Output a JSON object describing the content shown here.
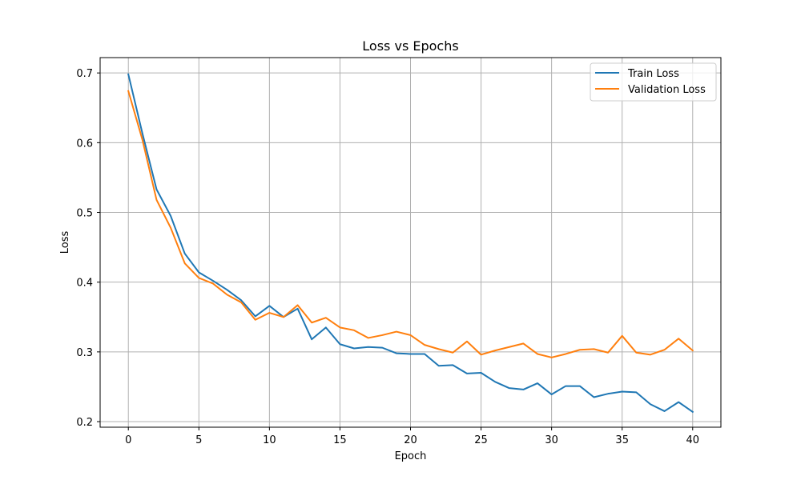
{
  "chart_data": {
    "type": "line",
    "title": "Loss vs Epochs",
    "xlabel": "Epoch",
    "ylabel": "Loss",
    "xlim": [
      -2,
      42
    ],
    "ylim": [
      0.192,
      0.722
    ],
    "xticks": [
      0,
      5,
      10,
      15,
      20,
      25,
      30,
      35,
      40
    ],
    "yticks": [
      0.2,
      0.3,
      0.4,
      0.5,
      0.6,
      0.7
    ],
    "ytick_labels": [
      "0.2",
      "0.3",
      "0.4",
      "0.5",
      "0.6",
      "0.7"
    ],
    "grid": true,
    "legend_position": "top-right",
    "x": [
      0,
      1,
      2,
      3,
      4,
      5,
      6,
      7,
      8,
      9,
      10,
      11,
      12,
      13,
      14,
      15,
      16,
      17,
      18,
      19,
      20,
      21,
      22,
      23,
      24,
      25,
      26,
      27,
      28,
      29,
      30,
      31,
      32,
      33,
      34,
      35,
      36,
      37,
      38,
      39,
      40
    ],
    "series": [
      {
        "name": "Train Loss",
        "color": "#1f77b4",
        "values": [
          0.698,
          0.613,
          0.533,
          0.495,
          0.441,
          0.414,
          0.402,
          0.389,
          0.374,
          0.351,
          0.366,
          0.35,
          0.362,
          0.318,
          0.335,
          0.311,
          0.305,
          0.307,
          0.306,
          0.298,
          0.297,
          0.297,
          0.28,
          0.281,
          0.269,
          0.27,
          0.257,
          0.248,
          0.246,
          0.255,
          0.239,
          0.251,
          0.251,
          0.235,
          0.24,
          0.243,
          0.242,
          0.225,
          0.215,
          0.228,
          0.214
        ]
      },
      {
        "name": "Validation Loss",
        "color": "#ff7f0e",
        "values": [
          0.674,
          0.604,
          0.518,
          0.478,
          0.427,
          0.406,
          0.398,
          0.382,
          0.371,
          0.346,
          0.356,
          0.35,
          0.367,
          0.342,
          0.349,
          0.335,
          0.331,
          0.32,
          0.324,
          0.329,
          0.324,
          0.31,
          0.304,
          0.299,
          0.315,
          0.296,
          0.302,
          0.307,
          0.312,
          0.297,
          0.292,
          0.297,
          0.303,
          0.304,
          0.299,
          0.323,
          0.299,
          0.296,
          0.303,
          0.319,
          0.302
        ]
      }
    ]
  }
}
